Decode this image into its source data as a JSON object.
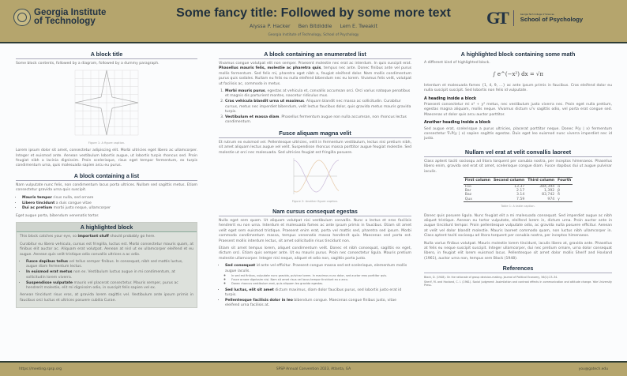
{
  "header": {
    "institution": [
      "Georgia Institute",
      "of Technology"
    ],
    "title": "Some fancy title: Followed by some more text",
    "authors": [
      "Alyssa P. Hacker",
      "Ben Bitdiddle",
      "Lem E. Tweakit"
    ],
    "affiliation": "Georgia Institute of Technology, School of Psychology",
    "right_logo_small": "Georgia Tech College of Sciences",
    "right_logo": "School of Psychology",
    "right_monogram": "GT"
  },
  "col1": {
    "b1": {
      "title": "A block title",
      "intro": "Some block contents, followed by a diagram, followed by a dummy paragraph.",
      "caption": "Figure 1: A figure caption.",
      "para": "Lorem ipsum dolor sit amet, consectetur adipiscing elit. Morbi ultricies eget libero ac ullamcorper. Integer et euismod ante. Aenean vestibulum lobortis augue, ut lobortis turpis rhoncus sed. Proin feugiat nibh a lacinia dignissim. Proin scelerisque, risus eget tempor fermentum, ex turpis condimentum urna, quis malesuada sapien arcu eu purus."
    },
    "b2": {
      "title": "A block containing a list",
      "intro": "Nam vulputate nunc felis, non condimentum lacus porta ultrices. Nullam sed sagittis metus. Etiam consectetur gravida urna quis suscipit.",
      "items": [
        {
          "b": "Mauris tempor",
          "t": " risus nulla, sed ornare"
        },
        {
          "b": "Libero tincidunt",
          "t": " a duis congue vitae"
        },
        {
          "b": "Dui ac pretium",
          "t": " morbi justo neque, ullamcorper"
        }
      ],
      "outro": "Eget augue porta, bibendum venenatis tortor."
    },
    "b3": {
      "title": "A highlighted block",
      "p1a": "This block catches your eye, so ",
      "p1b": "important stuff",
      "p1c": " should probably go here.",
      "p2": "Curabitur eu libero vehicula, cursus est fringilla, luctus est. Morbi consectetur mauris quam, at finibus elit auctor ac. Aliquam erat volutpat. Aenean at nisl ut ex ullamcorper eleifend et eu augue. Aenean quis velit tristique odio convallis ultrices a ac odio.",
      "items": [
        {
          "b": "Fusce dapibus tellus",
          "t": " vel tellus semper finibus. In consequat, nibh sed mattis luctus, augue diam fermentum lectus."
        },
        {
          "b": "In euismod erat metus",
          "t": " non ex. Vestibulum luctus augue in mi condimentum, at sollicitudin lorem viverra."
        },
        {
          "b": "Suspendisse vulputate",
          "t": " mauris vel placerat consectetur. Mauris semper, purus ac hendrerit molestie, elit mi dignissim odio, in suscipit felis sapien vel ex."
        }
      ],
      "p3": "Aenean tincidunt risus eros, at gravida lorem sagittis vel. Vestibulum ante ipsum primis in faucibus orci luctus et ultrices posuere cubilia Curae."
    }
  },
  "col2": {
    "b1": {
      "title": "A block containing an enumerated list",
      "pa": "Vivamus congue volutpat elit non semper. Praesent molestie nec erat ac interdum. In quis suscipit erat. ",
      "pb": "Phasellus mauris felis, molestie ac pharetra quis",
      "pc": ", tempus nec ante. Donec finibus ante vel purus mollis fermentum. Sed felis mi, pharetra eget nibh a, feugiat eleifend dolor. Nam mollis condimentum purus quis sodales. Nullam eu felis eu nulla eleifend bibendum nec eu lorem. Vivamus felis velit, volutpat ut facilisis ac, commodo in metus.",
      "items": [
        {
          "b": "Morbi mauris purus",
          "t": ", egestas at vehicula et, convallis accumsan orci. Orci varius natoque penatibus et magnis dis parturient montes, nascetur ridiculus mus."
        },
        {
          "b": "Cras vehicula blandit urna ut maximus",
          "t": ". Aliquam blandit nec massa ac sollicitudin. Curabitur cursus, metus nec imperdiet bibendum, velit lectus faucibus dolor, quis gravida metus mauris gravida turpis."
        },
        {
          "b": "Vestibulum et massa diam",
          "t": ". Phasellus fermentum augue non nulla accumsan, non rhoncus lectus condimentum."
        }
      ]
    },
    "b2": {
      "title": "Fusce aliquam magna velit",
      "para": "Et rutrum ex euismod vel. Pellentesque ultricies, velit in fermentum vestibulum, lectus nisi pretium nibh, sit amet aliquam lectus augue vel velit. Suspendisse rhoncus massa porttitor augue feugiat molestie. Sed molestie ut orci nec malesuada. Sed ultricies feugiat est fringilla posuere.",
      "caption": "Figure 2: Another figure caption."
    },
    "b3": {
      "title": "Nam cursus consequat egestas",
      "p1": "Nulla eget sem quam. Ut aliquam volutpat nisi vestibulum convallis. Nunc a lectus et eros facilisis hendrerit eu non urna. Interdum et malesuada fames ac ante ipsum primis in faucibus. Etiam sit amet velit eget sem euismod tristique. Praesent enim erat, porta vel mattis sed, pharetra sed ipsum. Morbi commodo condimentum massa, tempus venenatis massa hendrerit quis. Maecenas sed porta est. Praesent mollis interdum lectus, sit amet sollicitudin risus tincidunt non.",
      "p2": "Etiam sit amet tempus lorem, aliquet condimentum velit. Donec et nibh consequat, sagittis ex eget, dictum orci. Etiam quis semper ante. Ut eu mauris purus. Proin nec consectetur ligula. Mauris pretium molestie ullamcorper. Integer nisi neque, aliquet et odio non, sagittis porta justo.",
      "items": [
        {
          "b": "Sed consequat",
          "t": " id ante vel efficitur. Praesent congue massa sed est scelerisque, elementum mollis augue iaculis."
        },
        {
          "b": "Sed luctus, elit sit amet",
          "t": " dictum maximus, diam dolor faucibus purus, sed lobortis justo erat id turpis."
        },
        {
          "b": "Pellentesque facilisis dolor in leo",
          "t": " bibendum congue. Maecenas congue finibus justo, vitae eleifend urna facilisis at."
        }
      ],
      "subitems": [
        "In sed est finibus, vulputate nunc gravida, pulvinar lorem. In maximus nunc dolor, sed auctor eros porttitor quis.",
        "Fusce ornare dignissim nisi. Nam sit amet risus vel lacus tempor tincidunt eu a arcu.",
        "Donec rhoncus vestibulum erat, quis aliquam leo gravida egestas."
      ]
    }
  },
  "col3": {
    "b1": {
      "title": "A highlighted block containing some math",
      "intro": "A different kind of highlighted block.",
      "equation": "∫ e^(−x²) dx = √π",
      "p1": "Interdum et malesuada fames {1, 4, 9, …} ac ante ipsum primis in faucibus. Cras eleifend dolor eu nulla suscipit suscipit. Sed lobortis non felis id vulputate.",
      "h1": "A heading inside a block",
      "p2": "Praesent consectetur mi x² + y² metus, nec vestibulum justo viverra nec. Proin eget nulla pretium, egestas magna aliquam, mollis neque. Vivamus dictum uᵀv sagittis odio, vel porta erat congue sed. Maecenas ut dolor quis arcu auctor porttitor.",
      "h2": "Another heading inside a block",
      "p3": "Sed augue erat, scelerisque a purus ultricies, placerat porttitor neque. Donec P(y | x) fermentum consectetur ∇ₓP(y | x) sapien sagittis egestas. Duis eget leo euismod nunc viverra imperdiet nec id justo."
    },
    "b2": {
      "title": "Nullam vel erat at velit convallis laoreet",
      "intro": "Class aptent taciti sociosqu ad litora torquent per conubia nostra, per inceptos himenaeos. Phasellus libero enim, gravida sed erat sit amet, scelerisque congue diam. Fusce dapibus dui ut augue pulvinar iaculis.",
      "table": {
        "headers": [
          "First column",
          "Second column",
          "Third column",
          "Fourth"
        ],
        "rows": [
          [
            "Foo",
            "13.37",
            "384,394",
            "α"
          ],
          [
            "Bar",
            "2.17",
            "1,392",
            "β"
          ],
          [
            "Baz",
            "3.14",
            "83,742",
            "δ"
          ],
          [
            "Qux",
            "7.59",
            "974",
            "γ"
          ]
        ]
      },
      "caption": "Table 1: A table caption.",
      "p2": "Donec quis posuere ligula. Nunc feugiat elit a mi malesuada consequat. Sed imperdiet augue ac nibh aliquet tristique. Aenean eu tortor vulputate, eleifend lorem in, dictum urna. Proin auctor ante in augue tincidunt tempor. Proin pellentesque vulputate odio, ac gravida nulla posuere efficitur. Aenean at velit vel dolor blandit molestie. Mauris laoreet commodo quam, non luctus nibh ullamcorper in. Class aptent taciti sociosqu ad litora torquent per conubia nostra, per inceptos himenaeos.",
      "p3": "Nulla varius finibus volutpat. Mauris molestie lorem tincidunt, iaculis libero at, gravida ante. Phasellus at felis eu neque suscipit suscipit. Integer ullamcorper, dui nec pretium ornare, urna dolor consequat libero, in feugiat elit lorem euismod lacus. Pellentesque sit amet dolor mollis Sherif and Hovland (1961), auctor urna non, tempus sem Black (1948)."
    },
    "refs": {
      "title": "References",
      "items": [
        "Black, D. (1948). On the rationale of group decision-making. Journal of Political Economy, 56(1):23–34.",
        "Sherif, M. and Hovland, C. I. (1961). Social judgment: Assimilation and contrast effects in communication and attitude change. Yale University Press."
      ]
    }
  },
  "footer": {
    "left": "https://meeting.spsp.org",
    "center": "SPSP Annual Convention 2023, Atlanta, GA",
    "right": "you@gatech.edu"
  },
  "colors": {
    "gold": "#b5a56d",
    "navy": "#223344",
    "highlight": "#dde1dc"
  }
}
